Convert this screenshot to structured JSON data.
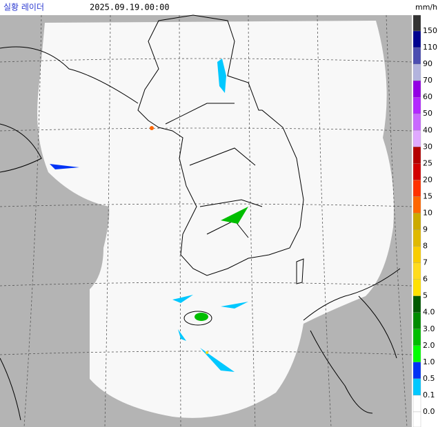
{
  "header": {
    "title": "실황 레이더",
    "time": "2025.09.19.00:00",
    "unit": "mm/h"
  },
  "legend": {
    "entries": [
      {
        "label": "150",
        "color": "#333333"
      },
      {
        "label": "110",
        "color": "#000390"
      },
      {
        "label": "90",
        "color": "#4c4eb1"
      },
      {
        "label": "70",
        "color": "#b3b4de"
      },
      {
        "label": "60",
        "color": "#9300e4"
      },
      {
        "label": "50",
        "color": "#b329ff"
      },
      {
        "label": "40",
        "color": "#c969ff"
      },
      {
        "label": "30",
        "color": "#e0a9ff"
      },
      {
        "label": "25",
        "color": "#b40000"
      },
      {
        "label": "20",
        "color": "#d20000"
      },
      {
        "label": "15",
        "color": "#ff3200"
      },
      {
        "label": "10",
        "color": "#ff6600"
      },
      {
        "label": "9",
        "color": "#ccaa00"
      },
      {
        "label": "8",
        "color": "#e0b900"
      },
      {
        "label": "7",
        "color": "#f9cd00"
      },
      {
        "label": "6",
        "color": "#ffdc1f"
      },
      {
        "label": "5",
        "color": "#ffe100"
      },
      {
        "label": "4.0",
        "color": "#005a00"
      },
      {
        "label": "3.0",
        "color": "#008c00"
      },
      {
        "label": "2.0",
        "color": "#00be00"
      },
      {
        "label": "1.0",
        "color": "#00ff00"
      },
      {
        "label": "0.5",
        "color": "#0033f5"
      },
      {
        "label": "0.1",
        "color": "#00c8ff"
      },
      {
        "label": "0.0",
        "color": "#ffffff"
      }
    ]
  }
}
